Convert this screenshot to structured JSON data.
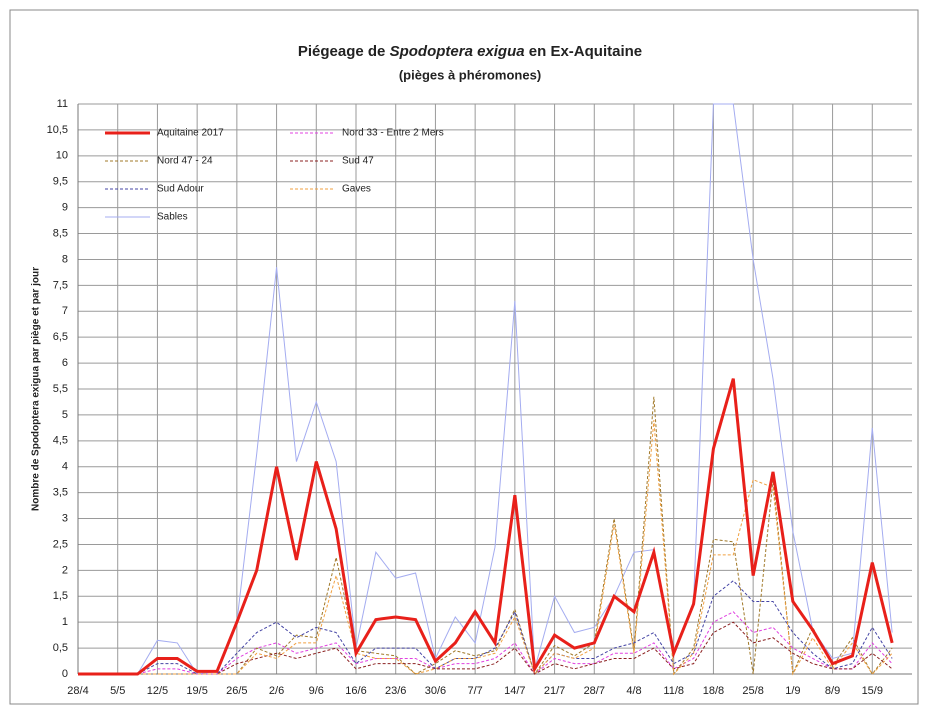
{
  "chart_data": {
    "type": "line",
    "title": [
      "Piégeage de ",
      "Spodoptera  exigua",
      " en Ex-Aquitaine"
    ],
    "subtitle": "(pièges à phéromones)",
    "y_label": "Nombre de Spodoptera exigua par piège et par jour",
    "categories": [
      "28/4",
      null,
      "5/5",
      null,
      "12/5",
      null,
      "19/5",
      null,
      "26/5",
      null,
      "2/6",
      null,
      "9/6",
      null,
      "16/6",
      null,
      "23/6",
      null,
      "30/6",
      null,
      "7/7",
      null,
      "14/7",
      null,
      "21/7",
      null,
      "28/7",
      null,
      "4/8",
      null,
      "11/8",
      null,
      "18/8",
      null,
      "25/8",
      null,
      "1/9",
      null,
      "8/9",
      null,
      "15/9",
      null
    ],
    "ylim": [
      0,
      11
    ],
    "yticks": [
      0,
      {
        "value": 0.5,
        "label": "0,5"
      },
      1,
      {
        "value": 1.5,
        "label": "1,5"
      },
      2,
      {
        "value": 2.5,
        "label": "2,5"
      },
      3,
      {
        "value": 3.5,
        "label": "3,5"
      },
      4,
      {
        "value": 4.5,
        "label": "4,5"
      },
      5,
      {
        "value": 5.5,
        "label": "5,5"
      },
      6,
      {
        "value": 6.5,
        "label": "6,5"
      },
      7,
      {
        "value": 7.5,
        "label": "7,5"
      },
      8,
      {
        "value": 8.5,
        "label": "8,5"
      },
      9,
      {
        "value": 9.5,
        "label": "9,5"
      },
      10,
      {
        "value": 10.5,
        "label": "10,5"
      },
      11
    ],
    "grid": true,
    "series": [
      {
        "name": "Sables",
        "color": "#a4acf0",
        "width": 1,
        "dashed": false,
        "values": [
          0,
          0,
          0,
          0,
          0.65,
          0.6,
          0,
          0.05,
          1,
          4.25,
          7.85,
          4.1,
          5.25,
          4.1,
          0.5,
          2.35,
          1.85,
          1.95,
          0.3,
          1.1,
          0.6,
          2.45,
          7.2,
          0.1,
          1.5,
          0.8,
          0.9,
          1.5,
          2.35,
          2.4,
          0.4,
          1.4,
          11,
          11,
          8,
          5.7,
          2.75,
          0.85,
          0.3,
          0.4,
          4.75,
          0.8
        ]
      },
      {
        "name": "Nord 33 - Entre 2 Mers",
        "color": "#e040e0",
        "width": 1,
        "dashed": true,
        "values": [
          0,
          0,
          0,
          0,
          0.1,
          0.1,
          0,
          0,
          0.3,
          0.5,
          0.6,
          0.4,
          0.5,
          0.6,
          0.2,
          0.3,
          0.3,
          0.3,
          0.1,
          0.2,
          0.2,
          0.3,
          0.6,
          0,
          0.3,
          0.2,
          0.2,
          0.4,
          0.4,
          0.6,
          0.1,
          0.3,
          1,
          1.2,
          0.8,
          0.9,
          0.5,
          0.3,
          0.1,
          0.1,
          0.6,
          0.2
        ]
      },
      {
        "name": "Nord 47 - 24",
        "color": "#a07828",
        "width": 1,
        "dashed": true,
        "values": [
          0,
          0,
          0,
          0,
          0,
          0,
          0,
          0,
          0,
          0.5,
          0.35,
          0.75,
          0.7,
          2.25,
          0.45,
          0.4,
          0.35,
          0,
          0.2,
          0.45,
          0.35,
          0.45,
          1.25,
          0,
          0.55,
          0.35,
          0.6,
          3,
          0.45,
          5.35,
          0,
          0.5,
          2.6,
          2.55,
          0,
          3.75,
          0,
          0.9,
          0.15,
          0.7,
          0,
          0.5
        ]
      },
      {
        "name": "Sud 47",
        "color": "#8b2020",
        "width": 1,
        "dashed": true,
        "values": [
          0,
          0,
          0,
          0,
          0,
          0,
          0,
          0,
          0.2,
          0.3,
          0.4,
          0.3,
          0.4,
          0.5,
          0.1,
          0.2,
          0.2,
          0.2,
          0.1,
          0.1,
          0.1,
          0.2,
          0.5,
          0,
          0.2,
          0.1,
          0.2,
          0.3,
          0.3,
          0.5,
          0.1,
          0.2,
          0.8,
          1,
          0.6,
          0.7,
          0.4,
          0.2,
          0.1,
          0.1,
          0.4,
          0.1
        ]
      },
      {
        "name": "Sud Adour",
        "color": "#4444a4",
        "width": 1,
        "dashed": true,
        "values": [
          0,
          0,
          0,
          0,
          0.2,
          0.2,
          0,
          0,
          0.4,
          0.8,
          1,
          0.7,
          0.9,
          0.8,
          0.2,
          0.5,
          0.5,
          0.5,
          0.1,
          0.3,
          0.3,
          0.5,
          1.2,
          0,
          0.4,
          0.3,
          0.3,
          0.5,
          0.6,
          0.8,
          0.2,
          0.4,
          1.5,
          1.8,
          1.4,
          1.4,
          0.8,
          0.4,
          0.1,
          0.2,
          0.9,
          0.3
        ]
      },
      {
        "name": "Gaves",
        "color": "#f0a040",
        "width": 1,
        "dashed": true,
        "values": [
          0,
          0,
          0,
          0,
          0,
          0,
          0,
          0,
          0,
          0.4,
          0.3,
          0.6,
          0.6,
          1.9,
          0.4,
          0.3,
          0.3,
          0,
          0.1,
          0.3,
          0.3,
          0.4,
          1.1,
          0,
          0.4,
          0.3,
          0.5,
          2.9,
          0.4,
          4.9,
          0,
          0.4,
          2.3,
          2.3,
          3.75,
          3.6,
          0,
          0.7,
          0.1,
          0.6,
          0,
          0.4
        ]
      },
      {
        "name": "Aquitaine 2017",
        "color": "#e8201a",
        "width": 3,
        "dashed": false,
        "values": [
          0,
          0,
          0,
          0,
          0.3,
          0.3,
          0.05,
          0.05,
          1,
          2,
          4,
          2.2,
          4.1,
          2.8,
          0.4,
          1.05,
          1.1,
          1.05,
          0.25,
          0.6,
          1.2,
          0.6,
          3.45,
          0.1,
          0.75,
          0.5,
          0.6,
          1.5,
          1.2,
          2.35,
          0.4,
          1.35,
          4.35,
          5.7,
          1.9,
          3.9,
          1.4,
          0.85,
          0.2,
          0.35,
          2.15,
          0.6
        ]
      }
    ],
    "legend_order": [
      6,
      1,
      2,
      3,
      4,
      5,
      0
    ]
  }
}
